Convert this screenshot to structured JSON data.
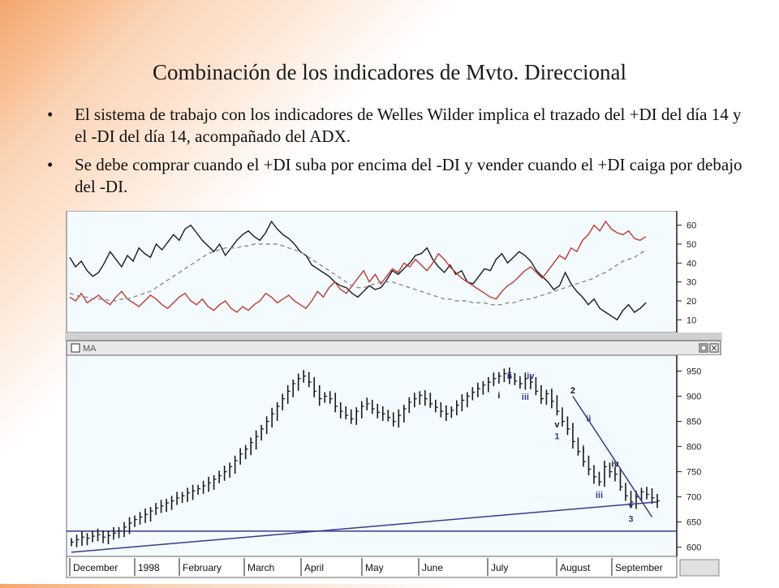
{
  "slide": {
    "title": "Combinación de los indicadores de Mvto. Direccional",
    "bullets": [
      "El sistema de trabajo con los indicadores de Welles Wilder implica el trazado del +DI del día 14 y el -DI del día 14, acompañado del ADX.",
      " Se debe comprar cuando el +DI suba por encima del -DI y vender cuando el +DI caiga por debajo del -DI."
    ],
    "bullet_glyph": "•"
  },
  "chart_data": [
    {
      "type": "line",
      "panel": "directional-movement",
      "x_range": [
        0,
        100
      ],
      "ylim": [
        5,
        65
      ],
      "y_ticks": [
        10,
        20,
        30,
        40,
        50,
        60
      ],
      "series": [
        {
          "color": "#1a1a1a",
          "dash": "solid",
          "values": [
            43,
            38,
            41,
            36,
            33,
            35,
            40,
            46,
            42,
            38,
            44,
            41,
            48,
            45,
            43,
            50,
            47,
            51,
            55,
            52,
            58,
            60,
            56,
            52,
            49,
            46,
            50,
            44,
            48,
            52,
            55,
            57,
            54,
            52,
            56,
            62,
            58,
            55,
            53,
            50,
            46,
            44,
            39,
            37,
            35,
            33,
            30,
            28,
            27,
            24,
            22,
            25,
            28,
            26,
            27,
            31,
            36,
            34,
            37,
            40,
            44,
            45,
            48,
            42,
            38,
            35,
            39,
            34,
            36,
            30,
            29,
            33,
            37,
            36,
            42,
            45,
            40,
            43,
            46,
            44,
            41,
            36,
            33,
            30,
            26,
            28,
            35,
            29,
            25,
            22,
            18,
            21,
            16,
            14,
            12,
            10,
            15,
            18,
            14,
            16,
            19
          ]
        },
        {
          "color": "#c0392b",
          "dash": "solid",
          "values": [
            22,
            20,
            24,
            19,
            21,
            23,
            20,
            18,
            22,
            25,
            21,
            19,
            17,
            20,
            23,
            21,
            18,
            16,
            19,
            22,
            24,
            20,
            18,
            21,
            17,
            15,
            18,
            20,
            16,
            14,
            17,
            15,
            18,
            20,
            24,
            22,
            19,
            21,
            23,
            20,
            18,
            16,
            20,
            25,
            22,
            27,
            30,
            26,
            24,
            28,
            32,
            36,
            30,
            34,
            29,
            33,
            37,
            35,
            40,
            38,
            42,
            39,
            36,
            40,
            45,
            42,
            38,
            35,
            32,
            30,
            28,
            26,
            24,
            22,
            21,
            25,
            28,
            30,
            33,
            36,
            38,
            35,
            32,
            36,
            40,
            44,
            42,
            48,
            46,
            52,
            55,
            60,
            57,
            62,
            58,
            56,
            55,
            57,
            53,
            52,
            54
          ]
        },
        {
          "color": "#8a8a8a",
          "dash": "dashed",
          "values": [
            24,
            23,
            22,
            22,
            21,
            21,
            21,
            20,
            20,
            21,
            21,
            22,
            23,
            24,
            25,
            27,
            29,
            31,
            33,
            35,
            37,
            39,
            41,
            43,
            45,
            46,
            47,
            48,
            48,
            48,
            49,
            49,
            50,
            50,
            50,
            50,
            50,
            49,
            48,
            47,
            46,
            44,
            42,
            40,
            38,
            36,
            34,
            32,
            30,
            28,
            27,
            27,
            28,
            29,
            30,
            30,
            30,
            29,
            28,
            27,
            26,
            25,
            24,
            23,
            22,
            21,
            21,
            20,
            20,
            20,
            19,
            19,
            19,
            18,
            18,
            18,
            19,
            19,
            20,
            21,
            21,
            22,
            23,
            24,
            25,
            26,
            27,
            28,
            29,
            30,
            31,
            32,
            34,
            35,
            37,
            39,
            41,
            42,
            43,
            45,
            47
          ]
        }
      ]
    },
    {
      "type": "bar",
      "panel": "price",
      "panel_label": "MA",
      "x_categories": [
        "December",
        "1998",
        "February",
        "March",
        "April",
        "May",
        "June",
        "July",
        "August",
        "September"
      ],
      "ylim": [
        585,
        975
      ],
      "y_ticks": [
        600,
        650,
        700,
        750,
        800,
        850,
        900,
        950
      ],
      "closes": [
        610,
        615,
        620,
        618,
        622,
        625,
        620,
        623,
        628,
        632,
        640,
        648,
        655,
        660,
        665,
        672,
        678,
        682,
        688,
        692,
        698,
        702,
        708,
        712,
        716,
        722,
        728,
        735,
        742,
        750,
        760,
        772,
        785,
        795,
        808,
        820,
        835,
        850,
        865,
        880,
        895,
        910,
        925,
        935,
        940,
        928,
        910,
        895,
        900,
        895,
        880,
        870,
        862,
        855,
        870,
        880,
        885,
        875,
        868,
        865,
        858,
        850,
        862,
        875,
        888,
        895,
        902,
        895,
        885,
        878,
        870,
        865,
        872,
        882,
        892,
        900,
        908,
        915,
        922,
        928,
        935,
        940,
        945,
        938,
        930,
        925,
        935,
        928,
        910,
        895,
        905,
        890,
        870,
        850,
        835,
        810,
        790,
        770,
        755,
        740,
        730,
        760,
        750,
        745,
        720,
        702,
        690,
        700,
        710,
        705,
        698,
        692
      ],
      "annotations": [
        {
          "text": "i",
          "at": 81,
          "price": 896,
          "color": "#1a1a1a"
        },
        {
          "text": "ii",
          "at": 83,
          "price": 935,
          "color": "#3a3a8a"
        },
        {
          "text": "iii",
          "at": 86,
          "price": 893,
          "color": "#3a3a8a"
        },
        {
          "text": "iv",
          "at": 87,
          "price": 935,
          "color": "#3a3a8a"
        },
        {
          "text": "v",
          "at": 92,
          "price": 838,
          "color": "#1a1a1a"
        },
        {
          "text": "1",
          "at": 92,
          "price": 815,
          "color": "#3a3a8a"
        },
        {
          "text": "2",
          "at": 95,
          "price": 906,
          "color": "#1a1a1a"
        },
        {
          "text": "i",
          "at": 97,
          "price": 790,
          "color": "#1a1a1a"
        },
        {
          "text": "ii",
          "at": 98,
          "price": 850,
          "color": "#3a3a8a"
        },
        {
          "text": "iii",
          "at": 100,
          "price": 698,
          "color": "#3a3a8a"
        },
        {
          "text": "iv",
          "at": 103,
          "price": 760,
          "color": "#1a1a1a"
        },
        {
          "text": "v",
          "at": 106,
          "price": 678,
          "color": "#3a3a8a"
        },
        {
          "text": "3",
          "at": 106,
          "price": 650,
          "color": "#3a3a8a"
        }
      ],
      "support_price": 632,
      "trendline_long": {
        "from": [
          0,
          590
        ],
        "to": [
          111,
          690
        ]
      },
      "trendline_down": {
        "from": [
          95,
          900
        ],
        "to": [
          110,
          660
        ]
      }
    }
  ],
  "colors": {
    "panel_bg": "#f4fbff",
    "axis_bg": "#ffffff",
    "frame": "#1a1a1a",
    "trend": "#3a3a8a"
  }
}
